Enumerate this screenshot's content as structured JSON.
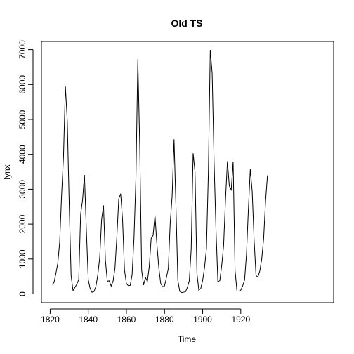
{
  "chart_data": {
    "type": "line",
    "title": "Old TS",
    "xlabel": "Time",
    "ylabel": "lynx",
    "x_start": 1821,
    "x_step": 1,
    "xlim": [
      1821,
      1934
    ],
    "ylim": [
      0,
      7000
    ],
    "x_ticks": [
      1820,
      1840,
      1860,
      1880,
      1900,
      1920
    ],
    "y_ticks": [
      0,
      1000,
      2000,
      3000,
      4000,
      5000,
      6000,
      7000
    ],
    "grid": false,
    "line_color": "#000000",
    "values": [
      269,
      321,
      585,
      871,
      1475,
      2821,
      3928,
      5943,
      4950,
      2577,
      523,
      98,
      184,
      279,
      409,
      2285,
      2685,
      3409,
      1824,
      409,
      151,
      45,
      68,
      213,
      546,
      1033,
      2129,
      2536,
      957,
      361,
      377,
      225,
      360,
      731,
      1638,
      2725,
      2871,
      2119,
      684,
      299,
      236,
      245,
      552,
      1623,
      3311,
      6721,
      4254,
      687,
      255,
      473,
      358,
      784,
      1594,
      1676,
      2251,
      1426,
      756,
      299,
      201,
      229,
      469,
      736,
      2042,
      2811,
      4431,
      2511,
      389,
      73,
      39,
      49,
      59,
      188,
      377,
      1292,
      4031,
      3495,
      587,
      105,
      153,
      387,
      758,
      1307,
      3465,
      6991,
      6313,
      3794,
      1836,
      345,
      382,
      808,
      1388,
      2713,
      3800,
      3091,
      2985,
      3790,
      674,
      81,
      80,
      108,
      229,
      399,
      1132,
      2432,
      3574,
      2935,
      1537,
      529,
      485,
      662,
      1000,
      1590,
      2657,
      3396
    ]
  }
}
